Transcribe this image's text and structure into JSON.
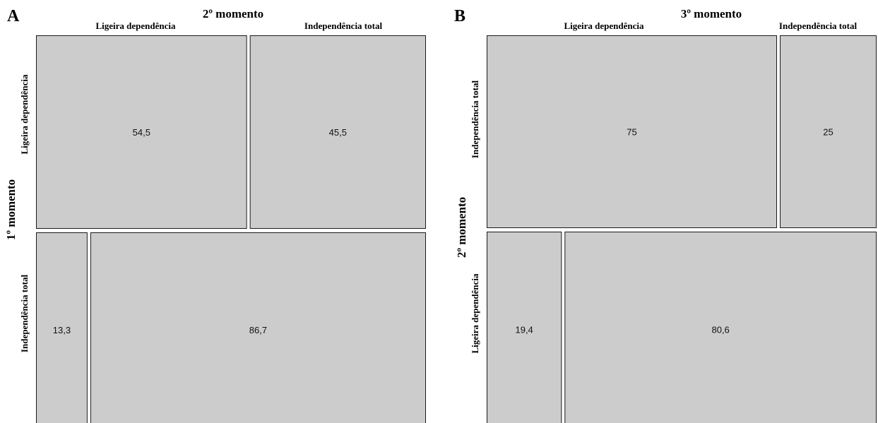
{
  "chart_data": [
    {
      "type": "mosaic",
      "panel": "A",
      "title": "2º momento",
      "row_axis_title": "1º momento",
      "columns": [
        "Ligeira dependência",
        "Independência total"
      ],
      "rows": [
        {
          "name": "Ligeira dependência",
          "values": [
            54.5,
            45.5
          ],
          "labels": [
            "54,5",
            "45,5"
          ]
        },
        {
          "name": "Independência total",
          "values": [
            13.3,
            86.7
          ],
          "labels": [
            "13,3",
            "86,7"
          ]
        }
      ]
    },
    {
      "type": "mosaic",
      "panel": "B",
      "title": "3º momento",
      "row_axis_title": "2º momento",
      "columns": [
        "Ligeira dependência",
        "Independência total"
      ],
      "rows": [
        {
          "name": "Independência total",
          "values": [
            75,
            25
          ],
          "labels": [
            "75",
            "25"
          ]
        },
        {
          "name": "Ligeira dependência",
          "values": [
            19.4,
            80.6
          ],
          "labels": [
            "19,4",
            "80,6"
          ]
        }
      ]
    }
  ]
}
